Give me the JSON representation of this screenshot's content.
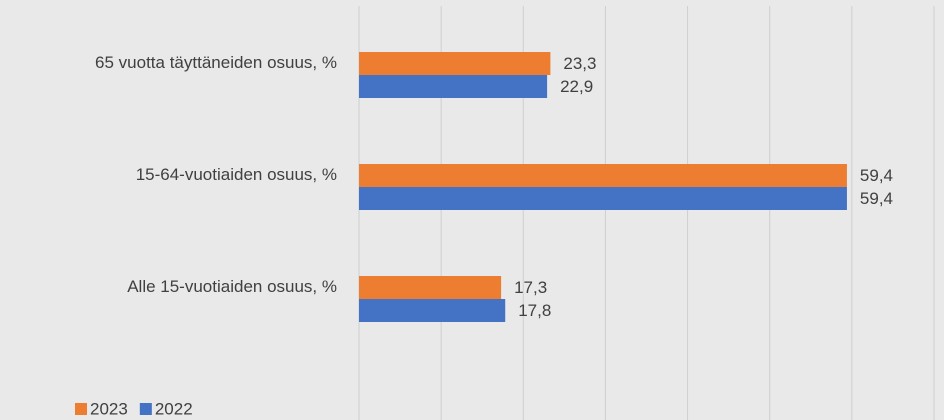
{
  "chart_data": {
    "type": "hbar",
    "categories": [
      "65 vuotta täyttäneiden osuus, %",
      "15-64-vuotiaiden osuus, %",
      "Alle 15-vuotiaiden osuus, %"
    ],
    "series": [
      {
        "name": "2023",
        "color": "#ed7d31",
        "values": [
          23.3,
          59.4,
          17.3
        ],
        "value_labels": [
          "23,3",
          "59,4",
          "17,3"
        ]
      },
      {
        "name": "2022",
        "color": "#4472c4",
        "values": [
          22.9,
          59.4,
          17.8
        ],
        "value_labels": [
          "22,9",
          "59,4",
          "17,8"
        ]
      }
    ],
    "xlim": [
      0,
      70
    ],
    "xticks": [
      0,
      10,
      20,
      30,
      40,
      50,
      60,
      70
    ],
    "grid": true,
    "legend": "bottom-left"
  }
}
